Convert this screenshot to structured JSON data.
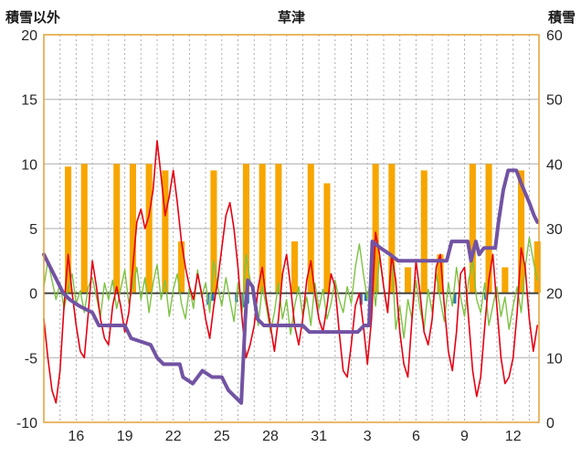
{
  "header": {
    "left_axis_title": "積雪以外",
    "chart_title": "草津",
    "right_axis_title": "積雪"
  },
  "chart_data": {
    "type": "combo",
    "title": "草津",
    "left_axis": {
      "label": "積雪以外",
      "min": -10,
      "max": 20,
      "ticks": [
        20,
        15,
        10,
        5,
        0,
        -5,
        -10
      ]
    },
    "right_axis": {
      "label": "積雪",
      "min": 0,
      "max": 60,
      "ticks": [
        60,
        50,
        40,
        30,
        20,
        10,
        0
      ]
    },
    "x_axis": {
      "domain_days": [
        0,
        30.6
      ],
      "tick_t": [
        2,
        5,
        8,
        11,
        14,
        17,
        20,
        23,
        26,
        29
      ],
      "tick_labels": [
        "16",
        "19",
        "22",
        "25",
        "28",
        "31",
        "3",
        "6",
        "9",
        "12"
      ],
      "gridline_every_days": 1
    },
    "grid": true,
    "legend": "none",
    "colors": {
      "sunshine": "#F7A600",
      "temperature": "#E60012",
      "green_series": "#7DC242",
      "snow_depth": "#7253A3",
      "precip": "#2E75B6",
      "grid": "#ADADAD",
      "frame": "#E2A037",
      "zero_line": "#444444",
      "background": "#FFFFFF"
    },
    "series": [
      {
        "name": "sunshine-bars",
        "type": "bar",
        "axis": "left",
        "color": "#F7A600",
        "bar_width_days": 0.4,
        "values": [
          0,
          9.8,
          10,
          0,
          10,
          10,
          10,
          9.5,
          4,
          0,
          9.5,
          0,
          10,
          10,
          10,
          4,
          10,
          8.5,
          0,
          0,
          10,
          10,
          2,
          9.5,
          3,
          0,
          10,
          10,
          2,
          9.5,
          4
        ]
      },
      {
        "name": "precipitation-bars",
        "type": "bar-points",
        "axis": "left",
        "color": "#2E75B6",
        "bar_width_days": 0.18,
        "points": [
          [
            10.15,
            -0.9
          ],
          [
            10.45,
            -0.6
          ],
          [
            11.9,
            -0.7
          ],
          [
            12.3,
            -1.1
          ],
          [
            12.6,
            -0.8
          ],
          [
            13.0,
            -0.5
          ],
          [
            19.6,
            -0.9
          ],
          [
            19.9,
            -0.6
          ],
          [
            25.4,
            -0.8
          ],
          [
            27.3,
            -0.5
          ]
        ]
      },
      {
        "name": "green-series",
        "type": "line",
        "axis": "left",
        "color": "#7DC242",
        "width": 1.4,
        "t_start": 0,
        "t_step": 0.25,
        "values": [
          0.5,
          2.5,
          1,
          -0.5,
          0.8,
          -1.2,
          0.3,
          1.5,
          -0.8,
          0.2,
          -1.5,
          0.5,
          1.2,
          -0.3,
          -1.8,
          0.8,
          -0.5,
          1,
          -1.2,
          0.3,
          1.8,
          -0.8,
          0.5,
          2,
          -0.5,
          1.2,
          -1.5,
          0.8,
          2.2,
          -0.5,
          1,
          -1.8,
          0.3,
          1.5,
          -0.8,
          -2,
          0.5,
          -1.2,
          1.8,
          -0.3,
          0.8,
          -1.5,
          2.5,
          0.5,
          -1,
          1.2,
          -0.5,
          -2.2,
          0.8,
          -1.5,
          3,
          1,
          -0.5,
          -2.5,
          0.5,
          -1,
          -3,
          -1.5,
          0.8,
          -2,
          -0.5,
          -3.2,
          -1,
          0.5,
          -1.8,
          -0.3,
          -2.5,
          0.8,
          -1.2,
          0.3,
          -2,
          -0.8,
          1,
          -0.5,
          -1.5,
          0.5,
          -0.8,
          2,
          3.8,
          1.5,
          -0.5,
          1.8,
          -1,
          2.8,
          0.5,
          -1.5,
          3,
          -2.8,
          -1,
          -3.5,
          -0.5,
          -2,
          1,
          -1.2,
          -2.8,
          0.3,
          -1.5,
          1.5,
          -0.5,
          -2.2,
          0.8,
          -1,
          2,
          -0.3,
          -1.8,
          1,
          2.5,
          -0.5,
          -1.5,
          0.8,
          -2.5,
          -1,
          0.5,
          -1.8,
          -0.3,
          -2.8,
          -1,
          0.5,
          -1.5,
          2,
          4.3,
          2.5,
          1
        ]
      },
      {
        "name": "temperature-line",
        "type": "line",
        "axis": "left",
        "color": "#E60012",
        "width": 1.6,
        "t_start": 0,
        "t_step": 0.25,
        "values": [
          -2,
          -5,
          -7.5,
          -8.5,
          -6,
          -1,
          3,
          0,
          -2.5,
          -4.5,
          -5,
          -1.5,
          2.5,
          0.5,
          -2,
          -3.5,
          -4,
          -1,
          0.5,
          -1,
          -3,
          -1.5,
          2,
          5.5,
          6.5,
          5,
          6,
          8,
          11.8,
          9,
          6,
          7.5,
          9.5,
          7,
          4,
          2,
          0.5,
          -0.5,
          1.5,
          0,
          -2,
          -3.5,
          -1,
          1,
          3.5,
          6,
          7,
          5,
          2,
          -2,
          -5,
          -4,
          -2.5,
          0.5,
          2,
          -0.5,
          -2.5,
          -4.5,
          -2,
          1.5,
          3,
          0.5,
          -2.5,
          -4,
          -2,
          1,
          2.5,
          0,
          -2,
          -3,
          -1,
          1.5,
          0.5,
          -3,
          -6,
          -6.5,
          -4,
          -1,
          0,
          -2.5,
          -5.5,
          -2,
          4.7,
          3,
          0.5,
          -1.5,
          3,
          1,
          -3,
          -5.5,
          -6.5,
          -2,
          2.5,
          0,
          -3,
          -4,
          -2,
          2,
          3,
          -1,
          -4.5,
          -6,
          -3,
          1.5,
          2,
          -2,
          -6,
          -8,
          -6.5,
          -2.5,
          1,
          3,
          -1,
          -5,
          -7,
          -6.5,
          -5,
          -1.5,
          3.5,
          2,
          -2,
          -4.5,
          -2.5
        ]
      },
      {
        "name": "snow-depth-line",
        "type": "line",
        "axis": "right",
        "color": "#7253A3",
        "width": 4,
        "points": [
          [
            0,
            26
          ],
          [
            0.4,
            24
          ],
          [
            0.8,
            22
          ],
          [
            1.2,
            20
          ],
          [
            1.6,
            19
          ],
          [
            2.2,
            18
          ],
          [
            3.0,
            17
          ],
          [
            3.4,
            15
          ],
          [
            5.0,
            15
          ],
          [
            5.4,
            13
          ],
          [
            6.6,
            12
          ],
          [
            7.0,
            10
          ],
          [
            7.4,
            9
          ],
          [
            8.4,
            9
          ],
          [
            8.6,
            7
          ],
          [
            9.2,
            6
          ],
          [
            9.8,
            8
          ],
          [
            10.4,
            7
          ],
          [
            11.0,
            7
          ],
          [
            11.4,
            5
          ],
          [
            12.2,
            3
          ],
          [
            12.45,
            16
          ],
          [
            12.6,
            22
          ],
          [
            12.9,
            21
          ],
          [
            13.2,
            16
          ],
          [
            13.6,
            15
          ],
          [
            16.0,
            15
          ],
          [
            16.4,
            14
          ],
          [
            19.4,
            14
          ],
          [
            19.8,
            15
          ],
          [
            20.1,
            15
          ],
          [
            20.3,
            28
          ],
          [
            20.8,
            27
          ],
          [
            21.4,
            26
          ],
          [
            21.9,
            25
          ],
          [
            24.9,
            25
          ],
          [
            25.2,
            28
          ],
          [
            26.2,
            28
          ],
          [
            26.4,
            25
          ],
          [
            26.7,
            28
          ],
          [
            26.9,
            26
          ],
          [
            27.2,
            27
          ],
          [
            27.9,
            27
          ],
          [
            28.1,
            31
          ],
          [
            28.4,
            36
          ],
          [
            28.7,
            39
          ],
          [
            29.2,
            39
          ],
          [
            29.5,
            37
          ],
          [
            30.0,
            34
          ],
          [
            30.3,
            32
          ],
          [
            30.5,
            31
          ]
        ]
      }
    ]
  }
}
